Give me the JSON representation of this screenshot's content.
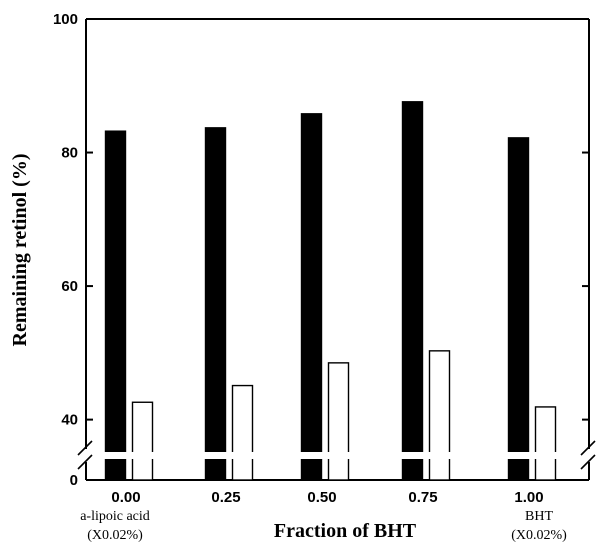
{
  "chart_data": {
    "type": "bar",
    "xlabel": "Fraction of BHT",
    "ylabel": "Remaining retinol (%)",
    "categories": [
      "0.00",
      "0.25",
      "0.50",
      "0.75",
      "1.00"
    ],
    "category_sublabels": [
      [
        "a-lipoic acid",
        "(X0.02%)"
      ],
      [
        "",
        ""
      ],
      [
        "",
        ""
      ],
      [
        "",
        ""
      ],
      [
        "BHT",
        "(X0.02%)"
      ]
    ],
    "y_ticks": [
      "0",
      "40",
      "60",
      "80",
      "100"
    ],
    "y_axis_break": [
      0,
      35
    ],
    "ylim": [
      0,
      100
    ],
    "series": [
      {
        "values": [
          83.2,
          83.7,
          85.8,
          87.6,
          82.2
        ],
        "color": "#000000"
      },
      {
        "values": [
          42.6,
          45.1,
          48.5,
          50.3,
          41.9
        ],
        "color": "#ffffff"
      }
    ],
    "grid": false,
    "legend": "none"
  }
}
